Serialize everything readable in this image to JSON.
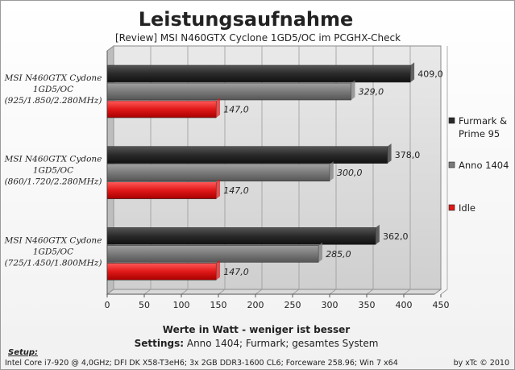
{
  "chart_data": {
    "type": "bar",
    "orientation": "horizontal",
    "title": "Leistungsaufnahme",
    "subtitle": "[Review] MSI N460GTX Cyclone 1GD5/OC im PCGHX-Check",
    "categories": [
      "MSI N460GTX Cydone 1GD5/OC (925/1.850/2.280MHz)",
      "MSI N460GTX Cydone 1GD5/OC (860/1.720/2.280MHz)",
      "MSI N460GTX Cydone 1GD5/OC (725/1.450/1.800MHz)"
    ],
    "category_lines": [
      [
        "MSI N460GTX Cydone",
        "1GD5/OC",
        "(925/1.850/2.280MHz)"
      ],
      [
        "MSI N460GTX Cydone",
        "1GD5/OC",
        "(860/1.720/2.280MHz)"
      ],
      [
        "MSI N460GTX Cydone",
        "1GD5/OC",
        "(725/1.450/1.800MHz)"
      ]
    ],
    "series": [
      {
        "name": "Furmark & Prime 95",
        "legend_lines": [
          "Furmark &",
          "Prime 95"
        ],
        "values": [
          409.0,
          378.0,
          362.0
        ],
        "labels": [
          "409,0",
          "378,0",
          "362,0"
        ],
        "color": "#2a2a2a"
      },
      {
        "name": "Anno 1404",
        "legend_lines": [
          "Anno 1404"
        ],
        "values": [
          329.0,
          300.0,
          285.0
        ],
        "labels": [
          "329,0",
          "300,0",
          "285,0"
        ],
        "color": "#7a7a7a"
      },
      {
        "name": "Idle",
        "legend_lines": [
          "Idle"
        ],
        "values": [
          147.0,
          147.0,
          147.0
        ],
        "labels": [
          "147,0",
          "147,0",
          "147,0"
        ],
        "color": "#e01818"
      }
    ],
    "xlim": [
      0,
      450
    ],
    "xticks": [
      "0",
      "50",
      "100",
      "150",
      "200",
      "250",
      "300",
      "350",
      "400",
      "450"
    ],
    "xlabel": "Werte in Watt - weniger ist besser",
    "settings_bold": "Settings:",
    "settings_text": " Anno 1404;  Furmark;  gesamtes System",
    "grid": true,
    "legend_position": "right"
  },
  "footer": {
    "setup_label": "Setup:",
    "setup_text": "Intel Core i7-920 @ 4,0GHz; DFI DK X58-T3eH6; 3x 2GB DDR3-1600 CL6; Forceware 258.96; Win 7 x64",
    "credit": "by xTc © 2010"
  }
}
